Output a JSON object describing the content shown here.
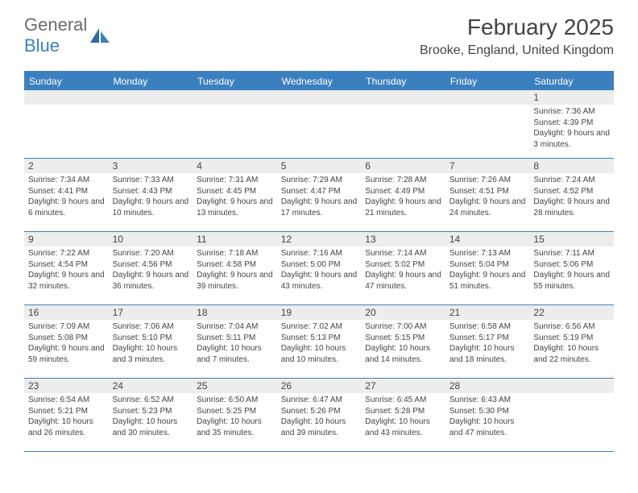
{
  "logo": {
    "word1": "General",
    "word2": "Blue"
  },
  "title": "February 2025",
  "location": "Brooke, England, United Kingdom",
  "colors": {
    "brand": "#3b7fbf",
    "gray_text": "#6b6b6b",
    "body_text": "#444444",
    "num_row_bg": "#ededed",
    "background": "#ffffff"
  },
  "day_names": [
    "Sunday",
    "Monday",
    "Tuesday",
    "Wednesday",
    "Thursday",
    "Friday",
    "Saturday"
  ],
  "weeks": [
    [
      {
        "num": "",
        "sunrise": "",
        "sunset": "",
        "daylight": ""
      },
      {
        "num": "",
        "sunrise": "",
        "sunset": "",
        "daylight": ""
      },
      {
        "num": "",
        "sunrise": "",
        "sunset": "",
        "daylight": ""
      },
      {
        "num": "",
        "sunrise": "",
        "sunset": "",
        "daylight": ""
      },
      {
        "num": "",
        "sunrise": "",
        "sunset": "",
        "daylight": ""
      },
      {
        "num": "",
        "sunrise": "",
        "sunset": "",
        "daylight": ""
      },
      {
        "num": "1",
        "sunrise": "Sunrise: 7:36 AM",
        "sunset": "Sunset: 4:39 PM",
        "daylight": "Daylight: 9 hours and 3 minutes."
      }
    ],
    [
      {
        "num": "2",
        "sunrise": "Sunrise: 7:34 AM",
        "sunset": "Sunset: 4:41 PM",
        "daylight": "Daylight: 9 hours and 6 minutes."
      },
      {
        "num": "3",
        "sunrise": "Sunrise: 7:33 AM",
        "sunset": "Sunset: 4:43 PM",
        "daylight": "Daylight: 9 hours and 10 minutes."
      },
      {
        "num": "4",
        "sunrise": "Sunrise: 7:31 AM",
        "sunset": "Sunset: 4:45 PM",
        "daylight": "Daylight: 9 hours and 13 minutes."
      },
      {
        "num": "5",
        "sunrise": "Sunrise: 7:29 AM",
        "sunset": "Sunset: 4:47 PM",
        "daylight": "Daylight: 9 hours and 17 minutes."
      },
      {
        "num": "6",
        "sunrise": "Sunrise: 7:28 AM",
        "sunset": "Sunset: 4:49 PM",
        "daylight": "Daylight: 9 hours and 21 minutes."
      },
      {
        "num": "7",
        "sunrise": "Sunrise: 7:26 AM",
        "sunset": "Sunset: 4:51 PM",
        "daylight": "Daylight: 9 hours and 24 minutes."
      },
      {
        "num": "8",
        "sunrise": "Sunrise: 7:24 AM",
        "sunset": "Sunset: 4:52 PM",
        "daylight": "Daylight: 9 hours and 28 minutes."
      }
    ],
    [
      {
        "num": "9",
        "sunrise": "Sunrise: 7:22 AM",
        "sunset": "Sunset: 4:54 PM",
        "daylight": "Daylight: 9 hours and 32 minutes."
      },
      {
        "num": "10",
        "sunrise": "Sunrise: 7:20 AM",
        "sunset": "Sunset: 4:56 PM",
        "daylight": "Daylight: 9 hours and 36 minutes."
      },
      {
        "num": "11",
        "sunrise": "Sunrise: 7:18 AM",
        "sunset": "Sunset: 4:58 PM",
        "daylight": "Daylight: 9 hours and 39 minutes."
      },
      {
        "num": "12",
        "sunrise": "Sunrise: 7:16 AM",
        "sunset": "Sunset: 5:00 PM",
        "daylight": "Daylight: 9 hours and 43 minutes."
      },
      {
        "num": "13",
        "sunrise": "Sunrise: 7:14 AM",
        "sunset": "Sunset: 5:02 PM",
        "daylight": "Daylight: 9 hours and 47 minutes."
      },
      {
        "num": "14",
        "sunrise": "Sunrise: 7:13 AM",
        "sunset": "Sunset: 5:04 PM",
        "daylight": "Daylight: 9 hours and 51 minutes."
      },
      {
        "num": "15",
        "sunrise": "Sunrise: 7:11 AM",
        "sunset": "Sunset: 5:06 PM",
        "daylight": "Daylight: 9 hours and 55 minutes."
      }
    ],
    [
      {
        "num": "16",
        "sunrise": "Sunrise: 7:09 AM",
        "sunset": "Sunset: 5:08 PM",
        "daylight": "Daylight: 9 hours and 59 minutes."
      },
      {
        "num": "17",
        "sunrise": "Sunrise: 7:06 AM",
        "sunset": "Sunset: 5:10 PM",
        "daylight": "Daylight: 10 hours and 3 minutes."
      },
      {
        "num": "18",
        "sunrise": "Sunrise: 7:04 AM",
        "sunset": "Sunset: 5:11 PM",
        "daylight": "Daylight: 10 hours and 7 minutes."
      },
      {
        "num": "19",
        "sunrise": "Sunrise: 7:02 AM",
        "sunset": "Sunset: 5:13 PM",
        "daylight": "Daylight: 10 hours and 10 minutes."
      },
      {
        "num": "20",
        "sunrise": "Sunrise: 7:00 AM",
        "sunset": "Sunset: 5:15 PM",
        "daylight": "Daylight: 10 hours and 14 minutes."
      },
      {
        "num": "21",
        "sunrise": "Sunrise: 6:58 AM",
        "sunset": "Sunset: 5:17 PM",
        "daylight": "Daylight: 10 hours and 18 minutes."
      },
      {
        "num": "22",
        "sunrise": "Sunrise: 6:56 AM",
        "sunset": "Sunset: 5:19 PM",
        "daylight": "Daylight: 10 hours and 22 minutes."
      }
    ],
    [
      {
        "num": "23",
        "sunrise": "Sunrise: 6:54 AM",
        "sunset": "Sunset: 5:21 PM",
        "daylight": "Daylight: 10 hours and 26 minutes."
      },
      {
        "num": "24",
        "sunrise": "Sunrise: 6:52 AM",
        "sunset": "Sunset: 5:23 PM",
        "daylight": "Daylight: 10 hours and 30 minutes."
      },
      {
        "num": "25",
        "sunrise": "Sunrise: 6:50 AM",
        "sunset": "Sunset: 5:25 PM",
        "daylight": "Daylight: 10 hours and 35 minutes."
      },
      {
        "num": "26",
        "sunrise": "Sunrise: 6:47 AM",
        "sunset": "Sunset: 5:26 PM",
        "daylight": "Daylight: 10 hours and 39 minutes."
      },
      {
        "num": "27",
        "sunrise": "Sunrise: 6:45 AM",
        "sunset": "Sunset: 5:28 PM",
        "daylight": "Daylight: 10 hours and 43 minutes."
      },
      {
        "num": "28",
        "sunrise": "Sunrise: 6:43 AM",
        "sunset": "Sunset: 5:30 PM",
        "daylight": "Daylight: 10 hours and 47 minutes."
      },
      {
        "num": "",
        "sunrise": "",
        "sunset": "",
        "daylight": ""
      }
    ]
  ]
}
